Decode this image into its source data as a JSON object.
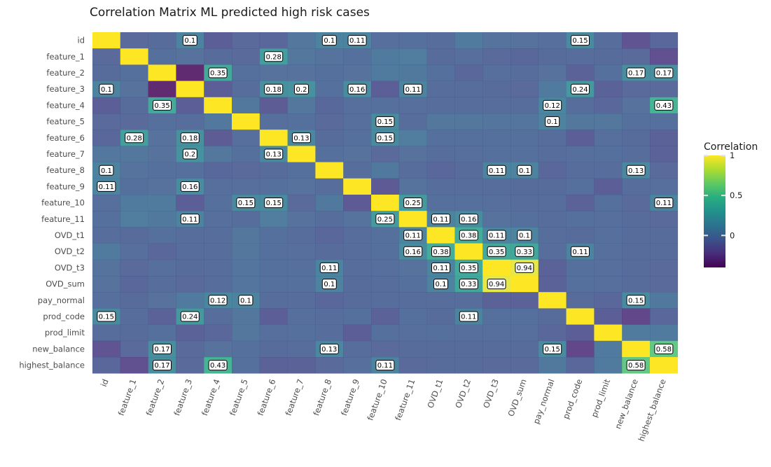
{
  "chart_data": {
    "type": "heatmap",
    "title": "Correlation Matrix ML predicted high risk cases",
    "variables": [
      "id",
      "feature_1",
      "feature_2",
      "feature_3",
      "feature_4",
      "feature_5",
      "feature_6",
      "feature_7",
      "feature_8",
      "feature_9",
      "feature_10",
      "feature_11",
      "OVD_t1",
      "OVD_t2",
      "OVD_t3",
      "OVD_sum",
      "pay_normal",
      "prod_code",
      "prod_limit",
      "new_balance",
      "highest_balance"
    ],
    "legend": {
      "title": "Correlation",
      "ticks": [
        {
          "value": 1,
          "label": "1"
        },
        {
          "value": 0.5,
          "label": "0.5"
        },
        {
          "value": 0,
          "label": "0"
        }
      ],
      "range": [
        -0.4,
        1
      ]
    },
    "matrix": [
      [
        1.0,
        -0.06,
        -0.05,
        0.1,
        -0.12,
        -0.06,
        -0.08,
        0.02,
        0.1,
        0.11,
        -0.03,
        -0.02,
        -0.04,
        0.05,
        0.0,
        -0.01,
        -0.03,
        0.15,
        -0.04,
        -0.18,
        -0.08
      ],
      [
        -0.06,
        1.0,
        -0.02,
        -0.01,
        -0.05,
        -0.06,
        0.28,
        0.02,
        0.0,
        -0.02,
        0.05,
        0.06,
        -0.05,
        -0.03,
        -0.06,
        -0.08,
        -0.05,
        -0.04,
        -0.05,
        -0.06,
        -0.2
      ],
      [
        -0.05,
        -0.02,
        1.0,
        -0.38,
        0.35,
        -0.02,
        -0.01,
        -0.01,
        -0.02,
        -0.01,
        0.05,
        0.04,
        -0.02,
        -0.08,
        -0.03,
        -0.04,
        -0.01,
        -0.1,
        -0.02,
        0.17,
        0.17
      ],
      [
        0.1,
        -0.01,
        -0.38,
        1.0,
        -0.12,
        -0.04,
        0.18,
        0.2,
        -0.02,
        0.16,
        -0.12,
        0.11,
        -0.04,
        -0.04,
        -0.05,
        -0.06,
        0.05,
        0.24,
        -0.1,
        -0.06,
        -0.06
      ],
      [
        -0.12,
        -0.05,
        0.35,
        -0.12,
        1.0,
        0.03,
        -0.14,
        0.02,
        -0.07,
        -0.03,
        -0.02,
        -0.03,
        -0.04,
        -0.04,
        -0.04,
        -0.04,
        0.12,
        -0.04,
        -0.08,
        -0.01,
        0.43
      ],
      [
        -0.06,
        -0.06,
        -0.02,
        -0.04,
        0.03,
        1.0,
        -0.03,
        -0.02,
        -0.06,
        -0.03,
        0.15,
        -0.04,
        0.02,
        0.02,
        0.01,
        0.01,
        0.1,
        0.02,
        0.02,
        -0.02,
        -0.02
      ],
      [
        -0.08,
        0.28,
        -0.01,
        0.18,
        -0.14,
        -0.03,
        1.0,
        0.13,
        -0.05,
        -0.02,
        0.15,
        0.06,
        -0.02,
        -0.02,
        -0.02,
        -0.02,
        -0.04,
        -0.12,
        -0.03,
        -0.05,
        -0.1
      ],
      [
        0.02,
        0.02,
        -0.01,
        0.2,
        0.02,
        -0.02,
        0.13,
        1.0,
        -0.02,
        -0.01,
        -0.06,
        -0.01,
        -0.04,
        -0.03,
        -0.02,
        -0.02,
        -0.04,
        -0.03,
        -0.02,
        -0.04,
        -0.1
      ],
      [
        0.1,
        0.0,
        -0.02,
        -0.02,
        -0.07,
        -0.06,
        -0.05,
        -0.02,
        1.0,
        -0.04,
        0.04,
        -0.04,
        -0.08,
        -0.05,
        0.11,
        0.1,
        -0.08,
        -0.04,
        -0.04,
        0.13,
        -0.06
      ],
      [
        0.11,
        -0.02,
        -0.01,
        0.16,
        -0.03,
        -0.03,
        -0.02,
        -0.01,
        -0.04,
        1.0,
        -0.15,
        0.0,
        -0.04,
        -0.04,
        -0.04,
        -0.05,
        -0.05,
        -0.02,
        -0.12,
        -0.04,
        -0.03
      ],
      [
        -0.03,
        0.05,
        0.05,
        -0.12,
        -0.02,
        0.15,
        0.15,
        -0.06,
        0.04,
        -0.15,
        1.0,
        0.25,
        -0.02,
        -0.02,
        -0.03,
        -0.04,
        -0.04,
        -0.1,
        -0.02,
        -0.06,
        0.11
      ],
      [
        -0.02,
        0.06,
        0.04,
        0.11,
        -0.03,
        -0.04,
        0.06,
        -0.01,
        -0.04,
        0.0,
        0.25,
        1.0,
        0.11,
        0.16,
        -0.01,
        -0.02,
        -0.04,
        -0.02,
        -0.03,
        -0.05,
        -0.06
      ],
      [
        -0.04,
        -0.05,
        -0.02,
        -0.04,
        -0.04,
        0.02,
        -0.02,
        -0.04,
        -0.08,
        -0.04,
        -0.02,
        0.11,
        1.0,
        0.38,
        0.11,
        0.1,
        -0.04,
        -0.05,
        -0.02,
        -0.05,
        -0.05
      ],
      [
        0.05,
        -0.03,
        -0.08,
        -0.04,
        -0.04,
        0.02,
        -0.02,
        -0.03,
        -0.05,
        -0.04,
        -0.02,
        0.16,
        0.38,
        1.0,
        0.35,
        0.33,
        -0.04,
        0.11,
        -0.03,
        -0.05,
        -0.05
      ],
      [
        0.0,
        -0.06,
        -0.03,
        -0.05,
        -0.04,
        0.01,
        -0.02,
        -0.02,
        0.11,
        -0.04,
        -0.03,
        -0.01,
        0.11,
        0.35,
        1.0,
        0.94,
        -0.1,
        -0.02,
        -0.03,
        -0.05,
        -0.06
      ],
      [
        -0.01,
        -0.08,
        -0.04,
        -0.06,
        -0.04,
        0.01,
        -0.02,
        -0.02,
        0.1,
        -0.05,
        -0.04,
        -0.02,
        0.1,
        0.33,
        0.94,
        1.0,
        -0.1,
        -0.02,
        -0.03,
        -0.05,
        -0.06
      ],
      [
        -0.03,
        -0.05,
        -0.01,
        0.05,
        0.12,
        0.1,
        -0.04,
        -0.04,
        -0.08,
        -0.05,
        -0.04,
        -0.04,
        -0.04,
        -0.04,
        -0.1,
        -0.1,
        1.0,
        -0.05,
        -0.08,
        0.15,
        0.04
      ],
      [
        0.15,
        -0.04,
        -0.1,
        0.24,
        -0.04,
        0.02,
        -0.12,
        -0.03,
        -0.04,
        -0.02,
        -0.1,
        -0.02,
        -0.05,
        0.11,
        -0.02,
        -0.02,
        -0.05,
        1.0,
        -0.12,
        -0.25,
        -0.08
      ],
      [
        -0.04,
        -0.05,
        -0.02,
        -0.1,
        -0.08,
        0.02,
        -0.03,
        -0.02,
        -0.04,
        -0.12,
        -0.02,
        -0.03,
        -0.02,
        -0.03,
        -0.03,
        -0.03,
        -0.08,
        -0.12,
        1.0,
        0.05,
        0.05
      ],
      [
        -0.18,
        -0.06,
        0.17,
        -0.06,
        -0.01,
        -0.02,
        -0.05,
        -0.04,
        0.13,
        -0.04,
        -0.06,
        -0.05,
        -0.05,
        -0.05,
        -0.05,
        -0.05,
        0.15,
        -0.25,
        0.05,
        1.0,
        0.58
      ],
      [
        -0.08,
        -0.2,
        0.17,
        -0.06,
        0.43,
        -0.02,
        -0.1,
        -0.1,
        -0.06,
        -0.03,
        0.11,
        -0.06,
        -0.05,
        -0.05,
        -0.06,
        -0.06,
        0.04,
        -0.08,
        0.05,
        0.58,
        1.0
      ]
    ],
    "labels": [
      {
        "row": 0,
        "col": 3,
        "text": "0.1"
      },
      {
        "row": 0,
        "col": 8,
        "text": "0.1"
      },
      {
        "row": 0,
        "col": 9,
        "text": "0.11"
      },
      {
        "row": 0,
        "col": 17,
        "text": "0.15"
      },
      {
        "row": 1,
        "col": 6,
        "text": "0.28"
      },
      {
        "row": 2,
        "col": 4,
        "text": "0.35"
      },
      {
        "row": 2,
        "col": 19,
        "text": "0.17"
      },
      {
        "row": 2,
        "col": 20,
        "text": "0.17"
      },
      {
        "row": 3,
        "col": 0,
        "text": "0.1"
      },
      {
        "row": 3,
        "col": 6,
        "text": "0.18"
      },
      {
        "row": 3,
        "col": 7,
        "text": "0.2"
      },
      {
        "row": 3,
        "col": 9,
        "text": "0.16"
      },
      {
        "row": 3,
        "col": 11,
        "text": "0.11"
      },
      {
        "row": 3,
        "col": 17,
        "text": "0.24"
      },
      {
        "row": 4,
        "col": 2,
        "text": "0.35"
      },
      {
        "row": 4,
        "col": 16,
        "text": "0.12"
      },
      {
        "row": 4,
        "col": 20,
        "text": "0.43"
      },
      {
        "row": 5,
        "col": 10,
        "text": "0.15"
      },
      {
        "row": 5,
        "col": 16,
        "text": "0.1"
      },
      {
        "row": 6,
        "col": 1,
        "text": "0.28"
      },
      {
        "row": 6,
        "col": 3,
        "text": "0.18"
      },
      {
        "row": 6,
        "col": 7,
        "text": "0.13"
      },
      {
        "row": 6,
        "col": 10,
        "text": "0.15"
      },
      {
        "row": 7,
        "col": 3,
        "text": "0.2"
      },
      {
        "row": 7,
        "col": 6,
        "text": "0.13"
      },
      {
        "row": 8,
        "col": 0,
        "text": "0.1"
      },
      {
        "row": 8,
        "col": 14,
        "text": "0.11"
      },
      {
        "row": 8,
        "col": 15,
        "text": "0.1"
      },
      {
        "row": 8,
        "col": 19,
        "text": "0.13"
      },
      {
        "row": 9,
        "col": 0,
        "text": "0.11"
      },
      {
        "row": 9,
        "col": 3,
        "text": "0.16"
      },
      {
        "row": 10,
        "col": 5,
        "text": "0.15"
      },
      {
        "row": 10,
        "col": 6,
        "text": "0.15"
      },
      {
        "row": 10,
        "col": 11,
        "text": "0.25"
      },
      {
        "row": 10,
        "col": 20,
        "text": "0.11"
      },
      {
        "row": 11,
        "col": 3,
        "text": "0.11"
      },
      {
        "row": 11,
        "col": 10,
        "text": "0.25"
      },
      {
        "row": 11,
        "col": 12,
        "text": "0.11"
      },
      {
        "row": 11,
        "col": 13,
        "text": "0.16"
      },
      {
        "row": 12,
        "col": 11,
        "text": "0.11"
      },
      {
        "row": 12,
        "col": 13,
        "text": "0.38"
      },
      {
        "row": 12,
        "col": 14,
        "text": "0.11"
      },
      {
        "row": 12,
        "col": 15,
        "text": "0.1"
      },
      {
        "row": 13,
        "col": 11,
        "text": "0.16"
      },
      {
        "row": 13,
        "col": 12,
        "text": "0.38"
      },
      {
        "row": 13,
        "col": 14,
        "text": "0.35"
      },
      {
        "row": 13,
        "col": 15,
        "text": "0.33"
      },
      {
        "row": 13,
        "col": 17,
        "text": "0.11"
      },
      {
        "row": 14,
        "col": 8,
        "text": "0.11"
      },
      {
        "row": 14,
        "col": 12,
        "text": "0.11"
      },
      {
        "row": 14,
        "col": 13,
        "text": "0.35"
      },
      {
        "row": 14,
        "col": 15,
        "text": "0.94"
      },
      {
        "row": 15,
        "col": 8,
        "text": "0.1"
      },
      {
        "row": 15,
        "col": 12,
        "text": "0.1"
      },
      {
        "row": 15,
        "col": 13,
        "text": "0.33"
      },
      {
        "row": 15,
        "col": 14,
        "text": "0.94"
      },
      {
        "row": 16,
        "col": 4,
        "text": "0.12"
      },
      {
        "row": 16,
        "col": 5,
        "text": "0.1"
      },
      {
        "row": 16,
        "col": 19,
        "text": "0.15"
      },
      {
        "row": 17,
        "col": 0,
        "text": "0.15"
      },
      {
        "row": 17,
        "col": 3,
        "text": "0.24"
      },
      {
        "row": 17,
        "col": 13,
        "text": "0.11"
      },
      {
        "row": 19,
        "col": 2,
        "text": "0.17"
      },
      {
        "row": 19,
        "col": 8,
        "text": "0.13"
      },
      {
        "row": 19,
        "col": 16,
        "text": "0.15"
      },
      {
        "row": 19,
        "col": 20,
        "text": "0.58"
      },
      {
        "row": 20,
        "col": 2,
        "text": "0.17"
      },
      {
        "row": 20,
        "col": 4,
        "text": "0.43"
      },
      {
        "row": 20,
        "col": 10,
        "text": "0.11"
      },
      {
        "row": 20,
        "col": 19,
        "text": "0.58"
      }
    ]
  }
}
